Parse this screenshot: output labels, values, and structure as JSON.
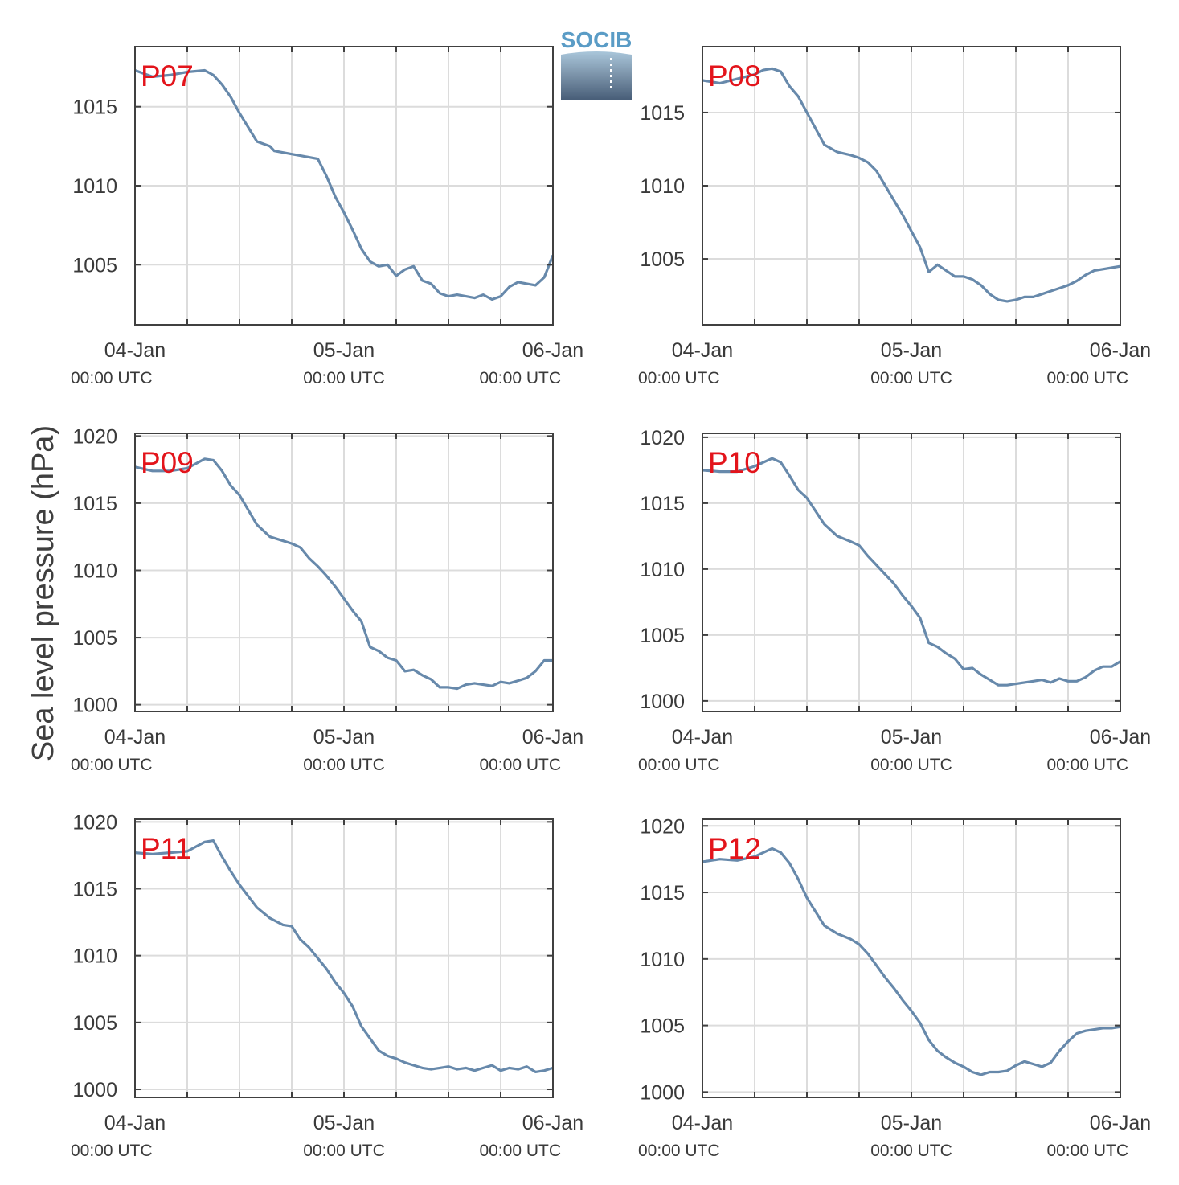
{
  "figure": {
    "ylabel": "Sea level pressure (hPa)",
    "logo_text": "SOCIB",
    "x_tick_labels": [
      {
        "day": "04-Jan",
        "time": "00:00 UTC"
      },
      {
        "day": "05-Jan",
        "time": "00:00 UTC"
      },
      {
        "day": "06-Jan",
        "time": "00:00 UTC"
      }
    ]
  },
  "colors": {
    "line": "#6789ab",
    "station_label": "#e3141b",
    "grid": "#dcdcdc",
    "axes": "#404040",
    "logo": "#5a9cc6"
  },
  "chart_data": [
    {
      "type": "line",
      "station": "P07",
      "xlabel": "",
      "ylabel": "Sea level pressure (hPa)",
      "x_range_hours": [
        0,
        48
      ],
      "ylim": [
        1001.2,
        1018.8
      ],
      "yticks": [
        1005,
        1010,
        1015
      ],
      "grid": true,
      "x_hours": [
        0,
        2,
        4,
        6,
        8,
        9,
        10,
        11,
        12,
        14,
        15.5,
        16,
        17,
        18,
        19,
        20,
        21,
        22,
        23,
        24,
        25,
        26,
        27,
        28,
        29,
        30,
        31,
        32,
        33,
        34,
        34.5,
        35,
        36,
        37,
        38,
        39,
        40,
        41,
        42,
        42.5,
        43,
        44,
        45,
        46,
        47,
        48
      ],
      "values": [
        1017.3,
        1016.9,
        1017.0,
        1017.2,
        1017.3,
        1017.0,
        1016.4,
        1015.6,
        1014.6,
        1012.8,
        1012.5,
        1012.2,
        1012.1,
        1012.0,
        1011.9,
        1011.8,
        1011.7,
        1010.6,
        1009.3,
        1008.3,
        1007.2,
        1006.0,
        1005.2,
        1004.9,
        1005.0,
        1004.3,
        1004.7,
        1004.9,
        1004.0,
        1003.8,
        1003.5,
        1003.2,
        1003.0,
        1003.1,
        1003.0,
        1002.9,
        1003.1,
        1002.8,
        1003.0,
        1003.3,
        1003.6,
        1003.9,
        1003.8,
        1003.7,
        1004.2,
        1005.6
      ]
    },
    {
      "type": "line",
      "station": "P08",
      "xlabel": "",
      "ylabel": "Sea level pressure (hPa)",
      "x_range_hours": [
        0,
        48
      ],
      "ylim": [
        1000.5,
        1019.5
      ],
      "yticks": [
        1005,
        1010,
        1015
      ],
      "grid": true,
      "x_hours": [
        0,
        2,
        4,
        6,
        7,
        8,
        9,
        10,
        11,
        12,
        14,
        15.5,
        17,
        18,
        19,
        20,
        21,
        22,
        23,
        24,
        25,
        26,
        27,
        28,
        29,
        30,
        31,
        32,
        33,
        34,
        35,
        36,
        37,
        38,
        39,
        40,
        41,
        42,
        43,
        44,
        45,
        46,
        47,
        48
      ],
      "values": [
        1017.2,
        1017.0,
        1017.3,
        1017.6,
        1017.9,
        1018.0,
        1017.8,
        1016.8,
        1016.1,
        1015.0,
        1012.8,
        1012.3,
        1012.1,
        1011.9,
        1011.6,
        1011.0,
        1010.0,
        1009.0,
        1008.0,
        1006.9,
        1005.8,
        1004.1,
        1004.6,
        1004.2,
        1003.8,
        1003.8,
        1003.6,
        1003.2,
        1002.6,
        1002.2,
        1002.1,
        1002.2,
        1002.4,
        1002.4,
        1002.6,
        1002.8,
        1003.0,
        1003.2,
        1003.5,
        1003.9,
        1004.2,
        1004.3,
        1004.4,
        1004.5
      ]
    },
    {
      "type": "line",
      "station": "P09",
      "xlabel": "",
      "ylabel": "Sea level pressure (hPa)",
      "x_range_hours": [
        0,
        48
      ],
      "ylim": [
        999.5,
        1020.2
      ],
      "yticks": [
        1000,
        1005,
        1010,
        1015,
        1020
      ],
      "grid": true,
      "x_hours": [
        0,
        2,
        4,
        6,
        8,
        9,
        10,
        11,
        12,
        14,
        15.5,
        17,
        18,
        19,
        20,
        21,
        22,
        23,
        24,
        25,
        26,
        27,
        28,
        29,
        30,
        31,
        32,
        33,
        34,
        35,
        36,
        37,
        38,
        39,
        40,
        41,
        42,
        43,
        44,
        45,
        46,
        47,
        48
      ],
      "values": [
        1017.7,
        1017.4,
        1017.4,
        1017.6,
        1018.3,
        1018.2,
        1017.4,
        1016.3,
        1015.6,
        1013.4,
        1012.5,
        1012.2,
        1012.0,
        1011.7,
        1010.9,
        1010.3,
        1009.6,
        1008.8,
        1007.9,
        1007.0,
        1006.2,
        1004.3,
        1004.0,
        1003.5,
        1003.3,
        1002.5,
        1002.6,
        1002.2,
        1001.9,
        1001.3,
        1001.3,
        1001.2,
        1001.5,
        1001.6,
        1001.5,
        1001.4,
        1001.7,
        1001.6,
        1001.8,
        1002.0,
        1002.5,
        1003.3,
        1003.3
      ]
    },
    {
      "type": "line",
      "station": "P10",
      "xlabel": "",
      "ylabel": "Sea level pressure (hPa)",
      "x_range_hours": [
        0,
        48
      ],
      "ylim": [
        999.2,
        1020.3
      ],
      "yticks": [
        1000,
        1005,
        1010,
        1015,
        1020
      ],
      "grid": true,
      "x_hours": [
        0,
        2,
        4,
        6,
        8,
        9,
        10,
        11,
        12,
        14,
        15.5,
        17,
        18,
        19,
        20,
        21,
        22,
        23,
        24,
        25,
        26,
        27,
        28,
        29,
        30,
        31,
        32,
        33,
        34,
        35,
        36,
        37,
        38,
        39,
        40,
        41,
        42,
        43,
        44,
        45,
        46,
        47,
        48
      ],
      "values": [
        1017.5,
        1017.4,
        1017.4,
        1017.8,
        1018.4,
        1018.1,
        1017.1,
        1016.0,
        1015.4,
        1013.4,
        1012.5,
        1012.1,
        1011.8,
        1011.0,
        1010.3,
        1009.6,
        1008.9,
        1008.0,
        1007.2,
        1006.3,
        1004.4,
        1004.1,
        1003.6,
        1003.2,
        1002.4,
        1002.5,
        1002.0,
        1001.6,
        1001.2,
        1001.2,
        1001.3,
        1001.4,
        1001.5,
        1001.6,
        1001.4,
        1001.7,
        1001.5,
        1001.5,
        1001.8,
        1002.3,
        1002.6,
        1002.6,
        1003.0
      ]
    },
    {
      "type": "line",
      "station": "P11",
      "xlabel": "",
      "ylabel": "Sea level pressure (hPa)",
      "x_range_hours": [
        0,
        48
      ],
      "ylim": [
        999.4,
        1020.2
      ],
      "yticks": [
        1000,
        1005,
        1010,
        1015,
        1020
      ],
      "grid": true,
      "x_hours": [
        0,
        2,
        4,
        6,
        8,
        9,
        10,
        11,
        12,
        14,
        15.5,
        17,
        18,
        19,
        20,
        21,
        22,
        23,
        24,
        25,
        26,
        27,
        28,
        29,
        30,
        31,
        32,
        33,
        34,
        35,
        36,
        37,
        38,
        39,
        40,
        41,
        42,
        43,
        44,
        45,
        46,
        47,
        48
      ],
      "values": [
        1017.7,
        1017.6,
        1017.7,
        1017.8,
        1018.5,
        1018.6,
        1017.4,
        1016.3,
        1015.3,
        1013.6,
        1012.8,
        1012.3,
        1012.2,
        1011.2,
        1010.6,
        1009.8,
        1009.0,
        1008.0,
        1007.2,
        1006.2,
        1004.7,
        1003.8,
        1002.9,
        1002.5,
        1002.3,
        1002.0,
        1001.8,
        1001.6,
        1001.5,
        1001.6,
        1001.7,
        1001.5,
        1001.6,
        1001.4,
        1001.6,
        1001.8,
        1001.4,
        1001.6,
        1001.5,
        1001.7,
        1001.3,
        1001.4,
        1001.6
      ]
    },
    {
      "type": "line",
      "station": "P12",
      "xlabel": "",
      "ylabel": "Sea level pressure (hPa)",
      "x_range_hours": [
        0,
        48
      ],
      "ylim": [
        999.6,
        1020.5
      ],
      "yticks": [
        1000,
        1005,
        1010,
        1015,
        1020
      ],
      "grid": true,
      "x_hours": [
        0,
        2,
        4,
        6,
        8,
        9,
        10,
        11,
        12,
        14,
        15.5,
        17,
        18,
        19,
        20,
        21,
        22,
        23,
        24,
        25,
        26,
        27,
        28,
        29,
        30,
        31,
        32,
        33,
        34,
        35,
        36,
        37,
        38,
        39,
        40,
        41,
        42,
        43,
        44,
        45,
        46,
        47,
        48
      ],
      "values": [
        1017.3,
        1017.5,
        1017.4,
        1017.7,
        1018.3,
        1018.0,
        1017.2,
        1016.0,
        1014.6,
        1012.5,
        1011.9,
        1011.5,
        1011.1,
        1010.4,
        1009.5,
        1008.6,
        1007.8,
        1006.9,
        1006.1,
        1005.2,
        1003.9,
        1003.1,
        1002.6,
        1002.2,
        1001.9,
        1001.5,
        1001.3,
        1001.5,
        1001.5,
        1001.6,
        1002.0,
        1002.3,
        1002.1,
        1001.9,
        1002.2,
        1003.1,
        1003.8,
        1004.4,
        1004.6,
        1004.7,
        1004.8,
        1004.8,
        1004.9
      ]
    }
  ]
}
